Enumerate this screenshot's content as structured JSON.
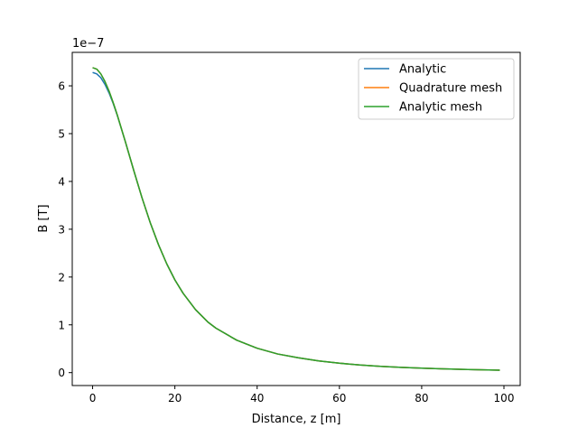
{
  "chart_data": {
    "type": "line",
    "title": "",
    "xlabel": "Distance, z [m]",
    "ylabel": "B [T]",
    "y_offset_label": "1e−7",
    "y_scale_exponent": -7,
    "xlim": [
      -4.95,
      103.95
    ],
    "ylim": [
      -0.27,
      6.7
    ],
    "x_ticks": [
      0,
      20,
      40,
      60,
      80,
      100
    ],
    "x_tick_labels": [
      "0",
      "20",
      "40",
      "60",
      "80",
      "100"
    ],
    "y_ticks": [
      0,
      1,
      2,
      3,
      4,
      5,
      6
    ],
    "y_tick_labels": [
      "0",
      "1",
      "2",
      "3",
      "4",
      "5",
      "6"
    ],
    "grid": false,
    "legend_position": "top-right",
    "x": [
      0,
      1,
      2,
      3,
      4,
      5,
      6,
      8,
      10,
      12,
      14,
      16,
      18,
      20,
      22,
      25,
      28,
      30,
      35,
      40,
      45,
      50,
      55,
      60,
      65,
      70,
      75,
      80,
      85,
      90,
      95,
      99
    ],
    "series": [
      {
        "name": "Analytic",
        "color": "#1f77b4",
        "values": [
          6.28,
          6.25,
          6.17,
          6.03,
          5.85,
          5.63,
          5.38,
          4.82,
          4.23,
          3.66,
          3.14,
          2.68,
          2.28,
          1.94,
          1.66,
          1.32,
          1.06,
          0.93,
          0.68,
          0.51,
          0.39,
          0.31,
          0.245,
          0.197,
          0.16,
          0.132,
          0.11,
          0.093,
          0.079,
          0.068,
          0.059,
          0.052
        ]
      },
      {
        "name": "Quadrature mesh",
        "color": "#ff7f0e",
        "values": [
          6.38,
          6.35,
          6.25,
          6.09,
          5.89,
          5.65,
          5.39,
          4.82,
          4.23,
          3.66,
          3.14,
          2.68,
          2.28,
          1.94,
          1.66,
          1.32,
          1.06,
          0.93,
          0.68,
          0.51,
          0.39,
          0.31,
          0.245,
          0.197,
          0.16,
          0.132,
          0.11,
          0.093,
          0.079,
          0.068,
          0.059,
          0.052
        ]
      },
      {
        "name": "Analytic mesh",
        "color": "#2ca02c",
        "values": [
          6.38,
          6.35,
          6.25,
          6.09,
          5.89,
          5.65,
          5.39,
          4.82,
          4.23,
          3.66,
          3.14,
          2.68,
          2.28,
          1.94,
          1.66,
          1.32,
          1.06,
          0.93,
          0.68,
          0.51,
          0.39,
          0.31,
          0.245,
          0.197,
          0.16,
          0.132,
          0.11,
          0.093,
          0.079,
          0.068,
          0.059,
          0.052
        ]
      }
    ]
  }
}
